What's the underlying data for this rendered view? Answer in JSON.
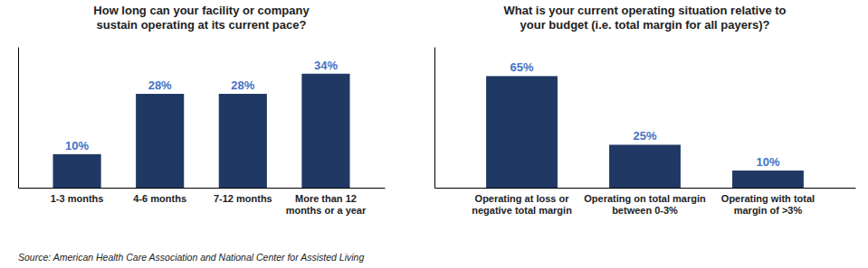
{
  "chart_data": [
    {
      "type": "bar",
      "title": "How long can your facility or company\nsustain operating at its current pace?",
      "categories": [
        "1-3 months",
        "4-6 months",
        "7-12 months",
        "More than 12\nmonths or a year"
      ],
      "values": [
        10,
        28,
        28,
        34
      ],
      "value_labels": [
        "10%",
        "28%",
        "28%",
        "34%"
      ],
      "color": "#1F3864",
      "ylim": [
        0,
        42
      ],
      "data_labels": true,
      "tick_labels": "x",
      "annotations": [
        "Source: American Health Care Association and National Center for Assisted Living"
      ]
    },
    {
      "type": "bar",
      "title": "What is your current operating situation relative to\nyour budget (i.e. total margin for all payers)?",
      "categories": [
        "Operating at loss or\nnegative total margin",
        "Operating on total margin\nbetween 0-3%",
        "Operating with total\nmargin of >3%"
      ],
      "values": [
        65,
        25,
        10
      ],
      "value_labels": [
        "65%",
        "25%",
        "10%"
      ],
      "color": "#1F3864",
      "ylim": [
        0,
        82
      ],
      "data_labels": true,
      "tick_labels": "x"
    }
  ]
}
